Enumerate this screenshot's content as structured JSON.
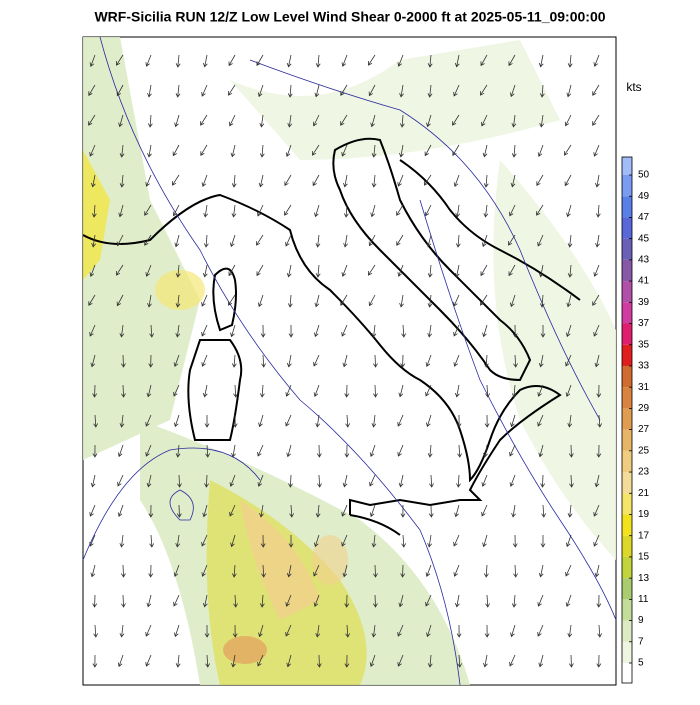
{
  "title": "WRF-Sicilia RUN 12/Z Low Level Wind Shear 0-2000 ft at 2025-05-11_09:00:00",
  "colorbar": {
    "unit": "kts",
    "ticks": [
      5,
      7,
      9,
      11,
      13,
      15,
      17,
      19,
      21,
      23,
      25,
      27,
      29,
      31,
      33,
      35,
      37,
      39,
      41,
      43,
      45,
      47,
      49,
      50
    ],
    "colors": [
      "#ffffff",
      "#eef5e0",
      "#dcebc4",
      "#c4de9a",
      "#a8cc6e",
      "#c2d43c",
      "#dcd82a",
      "#f2e21e",
      "#f4e468",
      "#f2dc98",
      "#f0cc80",
      "#e8b466",
      "#e09c50",
      "#d88440",
      "#d06c30",
      "#e01e1e",
      "#e01e6e",
      "#d03ca0",
      "#b050a8",
      "#8858a8",
      "#6a60b8",
      "#5868d8",
      "#5a80e8",
      "#7a9cf0",
      "#a2bcf8"
    ]
  }
}
